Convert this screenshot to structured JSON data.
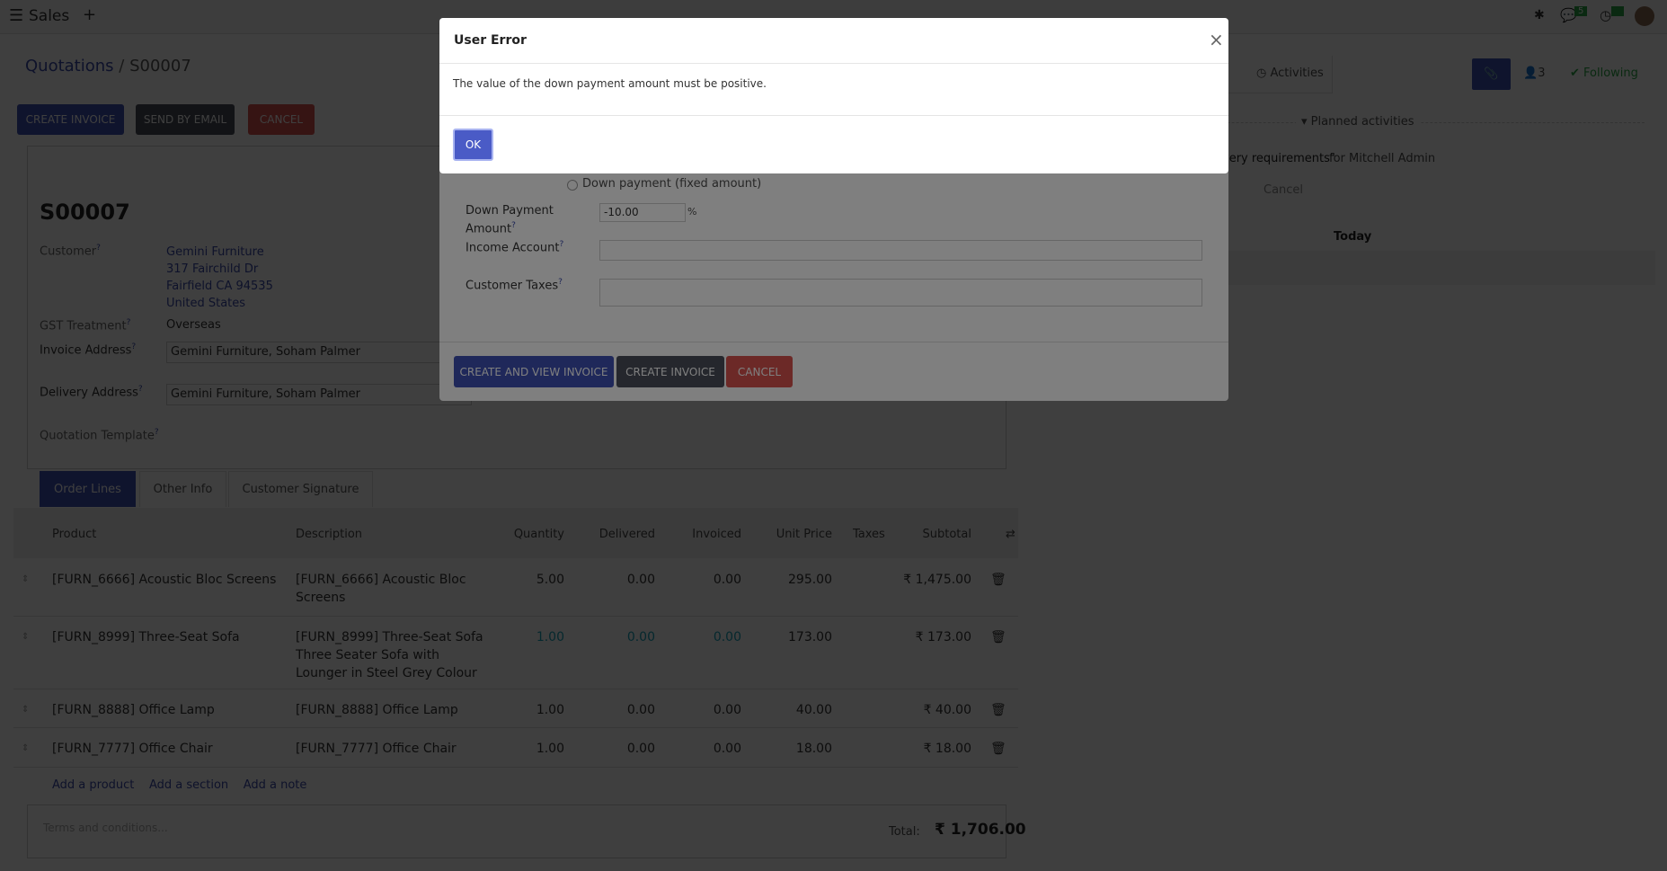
{
  "nav": {
    "app": "Sales",
    "chat_badge": "5",
    "activity_badge": "5"
  },
  "breadcrumb": {
    "parent": "Quotations",
    "current": "S00007"
  },
  "actions": {
    "create_invoice": "CREATE INVOICE",
    "send_email": "SEND BY EMAIL",
    "cancel": "CANCEL"
  },
  "form": {
    "title": "S00007",
    "customer_label": "Customer",
    "customer_name": "Gemini Furniture",
    "addr1": "317 Fairchild Dr",
    "addr2": "Fairfield CA 94535",
    "addr3": "United States",
    "gst_label": "GST Treatment",
    "gst_value": "Overseas",
    "invoice_label": "Invoice Address",
    "invoice_value": "Gemini Furniture, Soham Palmer",
    "delivery_label": "Delivery Address",
    "delivery_value": "Gemini Furniture, Soham Palmer",
    "template_label": "Quotation Template"
  },
  "tabs": [
    "Order Lines",
    "Other Info",
    "Customer Signature"
  ],
  "table": {
    "headers": [
      "Product",
      "Description",
      "Quantity",
      "Delivered",
      "Invoiced",
      "Unit Price",
      "Taxes",
      "Subtotal"
    ],
    "rows": [
      {
        "product": "[FURN_6666] Acoustic Bloc Screens",
        "desc": "[FURN_6666] Acoustic Bloc Screens",
        "qty": "5.00",
        "delivered": "0.00",
        "invoiced": "0.00",
        "price": "295.00",
        "subtotal": "₹ 1,475.00"
      },
      {
        "product": "[FURN_8999] Three-Seat Sofa",
        "desc": "[FURN_8999] Three-Seat Sofa Three Seater Sofa with Lounger in Steel Grey Colour",
        "qty": "1.00",
        "delivered": "0.00",
        "invoiced": "0.00",
        "price": "173.00",
        "subtotal": "₹ 173.00"
      },
      {
        "product": "[FURN_8888] Office Lamp",
        "desc": "[FURN_8888] Office Lamp",
        "qty": "1.00",
        "delivered": "0.00",
        "invoiced": "0.00",
        "price": "40.00",
        "subtotal": "₹ 40.00"
      },
      {
        "product": "[FURN_7777] Office Chair",
        "desc": "[FURN_7777] Office Chair",
        "qty": "1.00",
        "delivered": "0.00",
        "invoiced": "0.00",
        "price": "18.00",
        "subtotal": "₹ 18.00"
      }
    ],
    "add_product": "Add a product",
    "add_section": "Add a section",
    "add_note": "Add a note",
    "terms_placeholder": "Terms and conditions...",
    "total_label": "Total:",
    "total_value": "₹ 1,706.00"
  },
  "chatter": {
    "activities": "Activities",
    "followers": "3",
    "following": "Following",
    "planned": "Planned activities",
    "activity_text": "very requirements\"",
    "activity_for": "for Mitchell Admin",
    "cancel": "Cancel",
    "today": "Today"
  },
  "wizard": {
    "radio_fixed": "Down payment (fixed amount)",
    "amount_label_1": "Down Payment",
    "amount_label_2": "Amount",
    "amount_value": "-10.00",
    "percent": "%",
    "income_label": "Income Account",
    "taxes_label": "Customer Taxes",
    "create_view": "CREATE AND VIEW INVOICE",
    "create": "CREATE INVOICE",
    "cancel": "CANCEL"
  },
  "error": {
    "title": "User Error",
    "message": "The value of the down payment amount must be positive.",
    "ok": "OK"
  }
}
